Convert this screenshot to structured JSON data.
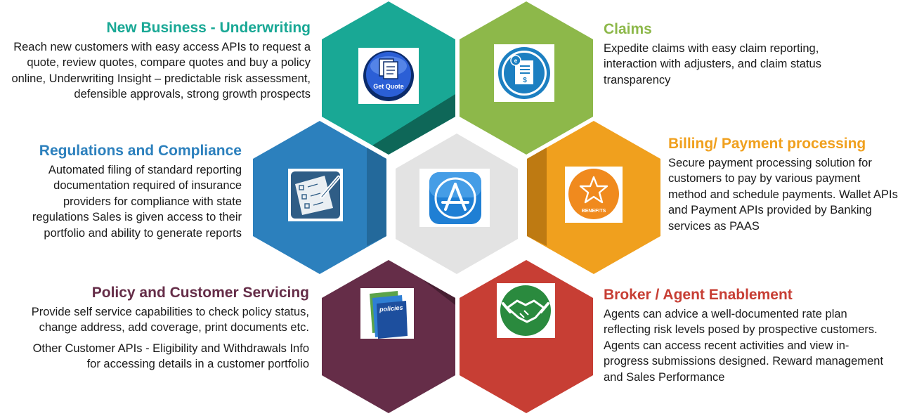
{
  "colors": {
    "new_business": "#19a895",
    "claims": "#8db84a",
    "regulations": "#2c80bd",
    "center": "#e3e3e3",
    "billing": "#f0a01e",
    "policy": "#652d48",
    "broker": "#c73e34"
  },
  "icons": {
    "new_business": "get-quote-icon",
    "claims": "document-dollar-icon",
    "regulations": "checklist-pencil-icon",
    "center": "app-store-icon",
    "billing": "star-benefits-icon",
    "policy": "policies-folder-icon",
    "broker": "handshake-icon"
  },
  "icon_labels": {
    "get_quote": "Get Quote",
    "benefits": "BENEFITS",
    "policies": "policies"
  },
  "new_business": {
    "title": "New Business - Underwriting",
    "text": "Reach new customers with easy access APIs  to request a  quote, review quotes, compare quotes and buy a policy online, Underwriting Insight – predictable risk assessment,  defensible approvals, strong  growth prospects"
  },
  "claims": {
    "title": "Claims",
    "text": "Expedite claims with easy claim reporting, interaction with adjusters, and claim status transparency"
  },
  "regulations": {
    "title": "Regulations and Compliance",
    "text": "Automated filing of standard reporting documentation required of insurance providers for compliance with state regulations  Sales is given access to their portfolio and ability to generate reports"
  },
  "billing": {
    "title": "Billing/ Payment processing",
    "text": "Secure payment processing solution for customers to pay by various payment method and schedule payments. Wallet APIs and Payment APIs provided by Banking services as PAAS"
  },
  "policy": {
    "title": "Policy and Customer Servicing",
    "text": "Provide self service capabilities to check policy status, change address, add coverage, print documents etc.",
    "text2": "Other Customer APIs - Eligibility and Withdrawals Info for accessing details in a customer portfolio"
  },
  "broker": {
    "title": "Broker / Agent Enablement",
    "text": "Agents can advice a   well-documented rate plan reflecting risk levels posed by prospective customers. Agents can access recent activities and view in-progress submissions designed. Reward management and Sales Performance"
  }
}
